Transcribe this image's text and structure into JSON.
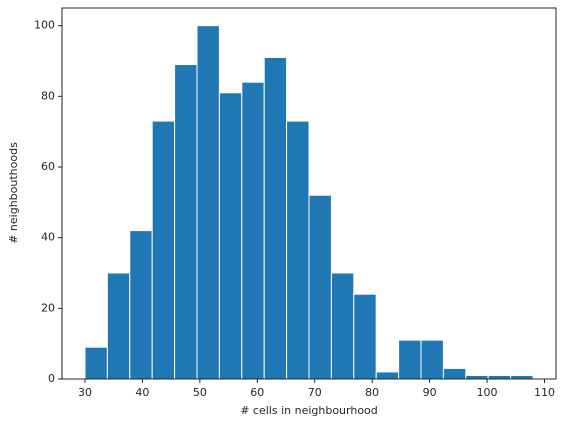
{
  "chart_data": {
    "type": "histogram",
    "xlabel": "# cells in neighbourhood",
    "ylabel": "# neighbouthoods",
    "bins": [
      30,
      33.9,
      37.8,
      41.7,
      45.6,
      49.5,
      53.4,
      57.3,
      61.2,
      65.1,
      69.0,
      72.9,
      76.8,
      80.7,
      84.6,
      88.5,
      92.4,
      96.3,
      100.2,
      104.1,
      108.0
    ],
    "values": [
      9,
      30,
      42,
      73,
      89,
      100,
      81,
      84,
      91,
      73,
      52,
      30,
      24,
      2,
      11,
      11,
      3,
      1,
      1,
      1
    ],
    "color": "#1f77b4",
    "edgecolor": "#ffffff",
    "xlim": [
      26,
      112
    ],
    "ylim": [
      0,
      105
    ],
    "xticks": [
      30,
      40,
      50,
      60,
      70,
      80,
      90,
      100,
      110
    ],
    "yticks": [
      0,
      20,
      40,
      60,
      80,
      100
    ],
    "grid": false
  }
}
